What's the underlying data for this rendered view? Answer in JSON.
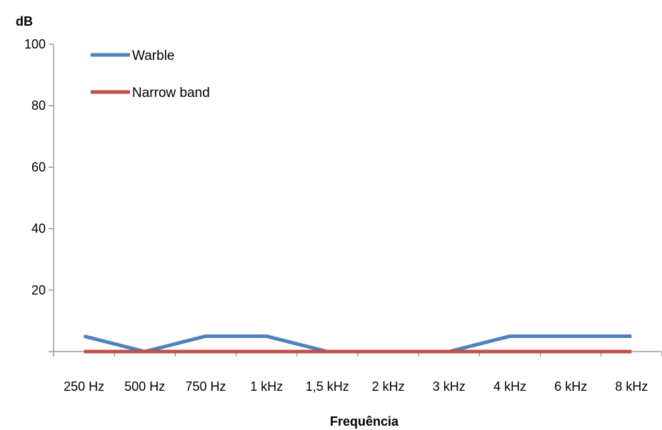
{
  "chart_data": {
    "type": "line",
    "title": "",
    "xlabel": "Frequência",
    "ylabel": "dB",
    "categories": [
      "250 Hz",
      "500 Hz",
      "750 Hz",
      "1 kHz",
      "1,5 kHz",
      "2 kHz",
      "3 kHz",
      "4 kHz",
      "6 kHz",
      "8 kHz"
    ],
    "series": [
      {
        "name": "Warble",
        "values": [
          5,
          0,
          5,
          5,
          0,
          0,
          0,
          5,
          5,
          5
        ],
        "color": "#4F81BD"
      },
      {
        "name": "Narrow band",
        "values": [
          0,
          0,
          0,
          0,
          0,
          0,
          0,
          0,
          0,
          0
        ],
        "color": "#C0504D"
      }
    ],
    "ylim": [
      0,
      100
    ],
    "yticks": [
      20,
      40,
      60,
      80,
      100
    ],
    "grid": false,
    "legend_position": "top-left"
  }
}
